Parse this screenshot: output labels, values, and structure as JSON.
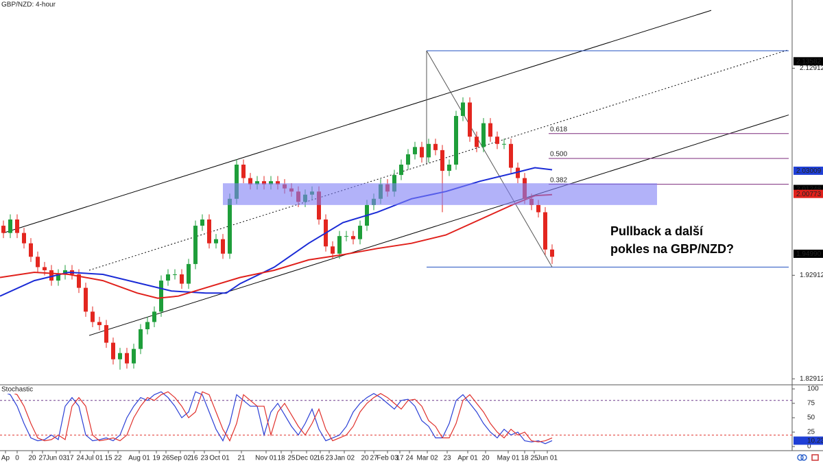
{
  "chart_data": [
    {
      "type": "candlestick",
      "title": "GBP/NZD: 4-hour",
      "x": [
        0.5,
        1.5,
        2.5,
        3.5,
        4.5,
        5.5,
        6.5,
        7.5,
        8.5,
        9.5,
        10.5,
        11.5,
        12.5,
        13.5,
        14.5,
        15.5,
        16.5,
        17.5,
        18.5,
        19.5,
        20.5,
        21.5,
        22.5,
        23.5,
        24.5,
        25.5,
        26.5,
        27.5,
        28.5,
        29.5,
        30.5,
        31.5,
        32.5,
        33.5,
        34.5,
        35.5,
        36.5,
        37.5,
        38.5,
        39.5,
        40.5,
        41.5,
        42.5,
        43.5,
        44.5,
        45.5,
        46.5,
        47.5,
        48.5,
        49.5,
        50.5,
        51.5,
        52.5,
        53.5,
        54.5,
        55.5,
        56.5,
        57.5,
        58.5,
        59.5,
        60.5,
        61.5,
        62.5,
        63.5,
        64.5,
        65.5,
        66.5,
        67.5,
        68.5,
        69.5,
        70.5,
        71.5,
        72.5,
        73.5,
        74.5,
        75.5,
        76.5,
        77.5,
        78.5,
        79.5,
        80.5
      ],
      "open": [
        1.977,
        1.97,
        1.983,
        1.97,
        1.96,
        1.947,
        1.937,
        1.934,
        1.924,
        1.93,
        1.934,
        1.93,
        1.917,
        1.894,
        1.884,
        1.881,
        1.864,
        1.848,
        1.854,
        1.844,
        1.858,
        1.877,
        1.884,
        1.894,
        1.924,
        1.93,
        1.93,
        1.921,
        1.94,
        1.977,
        1.983,
        1.96,
        1.964,
        1.95,
        2.003,
        2.036,
        2.023,
        2.017,
        2.02,
        2.017,
        2.02,
        2.017,
        2.013,
        2.01,
        2.0,
        2.007,
        2.01,
        1.983,
        1.957,
        1.95,
        1.967,
        1.967,
        1.964,
        1.977,
        1.997,
        2.003,
        2.017,
        2.01,
        2.026,
        2.036,
        2.046,
        2.053,
        2.043,
        2.056,
        2.05,
        2.03,
        2.036,
        2.083,
        2.096,
        2.063,
        2.053,
        2.076,
        2.063,
        2.056,
        2.056,
        2.033,
        2.023,
        2.003,
        1.997,
        1.99,
        1.954
      ],
      "high": [
        1.982,
        1.988,
        1.988,
        1.975,
        1.965,
        1.952,
        1.942,
        1.939,
        1.935,
        1.939,
        1.939,
        1.935,
        1.922,
        1.899,
        1.889,
        1.886,
        1.869,
        1.859,
        1.859,
        1.863,
        1.882,
        1.889,
        1.899,
        1.929,
        1.935,
        1.935,
        1.935,
        1.945,
        1.982,
        1.988,
        1.988,
        1.969,
        1.969,
        2.008,
        2.041,
        2.041,
        2.028,
        2.025,
        2.025,
        2.025,
        2.025,
        2.022,
        2.018,
        2.015,
        2.012,
        2.015,
        2.015,
        1.988,
        1.962,
        1.972,
        1.972,
        1.972,
        1.982,
        2.002,
        2.008,
        2.022,
        2.022,
        2.031,
        2.041,
        2.051,
        2.058,
        2.058,
        2.061,
        2.061,
        2.055,
        2.041,
        2.088,
        2.101,
        2.101,
        2.068,
        2.081,
        2.081,
        2.068,
        2.061,
        2.061,
        2.038,
        2.028,
        2.008,
        2.002,
        1.995,
        1.959
      ],
      "low": [
        1.965,
        1.965,
        1.965,
        1.955,
        1.942,
        1.932,
        1.929,
        1.919,
        1.919,
        1.925,
        1.925,
        1.912,
        1.889,
        1.879,
        1.876,
        1.859,
        1.843,
        1.838,
        1.839,
        1.839,
        1.853,
        1.872,
        1.879,
        1.889,
        1.919,
        1.925,
        1.916,
        1.916,
        1.935,
        1.972,
        1.955,
        1.955,
        1.945,
        1.945,
        1.998,
        2.018,
        2.012,
        2.012,
        2.012,
        2.012,
        2.012,
        2.008,
        2.005,
        1.995,
        1.995,
        2.002,
        1.978,
        1.952,
        1.945,
        1.945,
        1.962,
        1.959,
        1.959,
        1.972,
        1.992,
        1.998,
        2.005,
        2.005,
        2.021,
        2.031,
        2.041,
        2.038,
        2.038,
        2.045,
        1.99,
        2.025,
        2.031,
        2.078,
        2.058,
        2.048,
        2.048,
        2.058,
        2.051,
        2.051,
        2.028,
        2.018,
        1.998,
        1.992,
        1.985,
        1.949,
        1.94
      ],
      "close": [
        1.97,
        1.983,
        1.97,
        1.96,
        1.947,
        1.937,
        1.934,
        1.924,
        1.93,
        1.934,
        1.93,
        1.917,
        1.894,
        1.884,
        1.881,
        1.864,
        1.848,
        1.854,
        1.844,
        1.858,
        1.877,
        1.884,
        1.894,
        1.924,
        1.93,
        1.93,
        1.921,
        1.94,
        1.977,
        1.983,
        1.96,
        1.964,
        1.95,
        2.003,
        2.036,
        2.023,
        2.017,
        2.02,
        2.017,
        2.02,
        2.017,
        2.013,
        2.01,
        2.0,
        2.007,
        2.01,
        1.983,
        1.957,
        1.95,
        1.967,
        1.967,
        1.964,
        1.977,
        1.997,
        2.003,
        2.017,
        2.01,
        2.026,
        2.036,
        2.046,
        2.053,
        2.043,
        2.056,
        2.05,
        2.03,
        2.036,
        2.083,
        2.096,
        2.063,
        2.053,
        2.076,
        2.063,
        2.056,
        2.056,
        2.033,
        2.023,
        2.003,
        1.997,
        1.99,
        1.954,
        1.947
      ],
      "up_color": "#1e9e3a",
      "down_color": "#e3261f",
      "overlays": [
        {
          "color": "#1a2bd6",
          "x": [
            0,
            5,
            10,
            15,
            20,
            25,
            30,
            33,
            35,
            40,
            45,
            50,
            55,
            60,
            65,
            70,
            75,
            78,
            80.5
          ],
          "values": [
            1.909,
            1.924,
            1.932,
            1.93,
            1.922,
            1.914,
            1.912,
            1.912,
            1.921,
            1.937,
            1.96,
            1.98,
            1.99,
            2.003,
            2.01,
            2.02,
            2.028,
            2.033,
            2.031
          ]
        },
        {
          "color": "#e0201b",
          "x": [
            0,
            5,
            10,
            15,
            20,
            23,
            26,
            30,
            35,
            40,
            45,
            50,
            55,
            60,
            65,
            70,
            75,
            78,
            80.5
          ],
          "values": [
            1.927,
            1.932,
            1.93,
            1.924,
            1.912,
            1.907,
            1.909,
            1.917,
            1.927,
            1.934,
            1.944,
            1.949,
            1.955,
            1.96,
            1.968,
            1.983,
            1.998,
            2.006,
            2.007
          ]
        }
      ],
      "trendlines": [
        {
          "x": [
            0.5,
            103.7
          ],
          "y": [
            1.97,
            2.185
          ],
          "color": "#000000",
          "dash": false
        },
        {
          "x": [
            13,
            115
          ],
          "y": [
            1.934,
            2.147
          ],
          "color": "#000000",
          "dash": true
        },
        {
          "x": [
            13,
            115
          ],
          "y": [
            1.871,
            2.084
          ],
          "color": "#000000",
          "dash": false
        },
        {
          "x": [
            62.2,
            115
          ],
          "y": [
            2.146,
            2.146
          ],
          "color": "#1f4fc0",
          "dash": false
        },
        {
          "x": [
            62.2,
            115
          ],
          "y": [
            1.937,
            1.937
          ],
          "color": "#1f4fc0",
          "dash": false
        },
        {
          "x": [
            62.2,
            80.5
          ],
          "y": [
            2.146,
            1.937
          ],
          "color": "#555555",
          "dash": false
        },
        {
          "x": [
            62.2,
            62.2
          ],
          "y": [
            2.146,
            2.036
          ],
          "color": "#555555",
          "dash": false
        }
      ],
      "zone": {
        "x": [
          32.5,
          95.8
        ],
        "y": [
          1.997,
          2.018
        ],
        "color": "#7f7ff5"
      },
      "fib": {
        "x": [
          80,
          115
        ],
        "color": "#7b2a7b",
        "levels": [
          {
            "ratio": 0.618,
            "price": 2.066
          },
          {
            "ratio": 0.5,
            "label": "0.500",
            "price": 2.042
          },
          {
            "ratio": 0.382,
            "price": 2.017
          }
        ]
      },
      "annotation": [
        "Pullback a další",
        "pokles na GBP/NZD?"
      ],
      "xlim": [
        0,
        115.5
      ],
      "ylim": [
        1.824,
        2.195
      ],
      "yticks": [
        1.82912,
        1.92912,
        2.12912
      ],
      "price_labels": [
        {
          "value": 2.13582,
          "color": "#000000"
        },
        {
          "value": 2.03009,
          "color": "#1f3fd6"
        },
        {
          "value": 2.01248,
          "color": "#000000"
        },
        {
          "value": 2.00773,
          "color": "#e0201b"
        },
        {
          "value": 1.9499,
          "label": "1.94990",
          "color": "#000000"
        }
      ]
    },
    {
      "type": "line",
      "title": "Stochastic",
      "x": [
        0.5,
        1.5,
        2.5,
        3.5,
        4.5,
        5.5,
        6.5,
        7.5,
        8.5,
        9.5,
        10.5,
        11.5,
        12.5,
        13.5,
        14.5,
        15.5,
        16.5,
        17.5,
        18.5,
        19.5,
        20.5,
        21.5,
        22.5,
        23.5,
        24.5,
        25.5,
        26.5,
        27.5,
        28.5,
        29.5,
        30.5,
        31.5,
        32.5,
        33.5,
        34.5,
        35.5,
        36.5,
        37.5,
        38.5,
        39.5,
        40.5,
        41.5,
        42.5,
        43.5,
        44.5,
        45.5,
        46.5,
        47.5,
        48.5,
        49.5,
        50.5,
        51.5,
        52.5,
        53.5,
        54.5,
        55.5,
        56.5,
        57.5,
        58.5,
        59.5,
        60.5,
        61.5,
        62.5,
        63.5,
        64.5,
        65.5,
        66.5,
        67.5,
        68.5,
        69.5,
        70.5,
        71.5,
        72.5,
        73.5,
        74.5,
        75.5,
        76.5,
        77.5,
        78.5,
        79.5,
        80.5
      ],
      "series": [
        {
          "color": "#2a3fd6",
          "values": [
            95,
            90,
            70,
            40,
            15,
            10,
            12,
            20,
            12,
            70,
            85,
            70,
            20,
            10,
            12,
            15,
            10,
            20,
            50,
            70,
            85,
            80,
            90,
            95,
            85,
            70,
            50,
            60,
            95,
            90,
            60,
            30,
            10,
            40,
            90,
            80,
            70,
            70,
            20,
            60,
            75,
            55,
            35,
            20,
            40,
            65,
            30,
            10,
            15,
            20,
            35,
            60,
            75,
            85,
            92,
            85,
            75,
            65,
            80,
            82,
            70,
            45,
            35,
            15,
            15,
            40,
            80,
            90,
            75,
            60,
            40,
            25,
            15,
            30,
            20,
            25,
            10,
            8,
            10,
            5,
            10.23
          ]
        },
        {
          "color": "#e0302b",
          "values": [
            92,
            95,
            90,
            70,
            40,
            15,
            10,
            12,
            20,
            12,
            70,
            85,
            70,
            20,
            10,
            12,
            15,
            10,
            20,
            50,
            70,
            85,
            80,
            90,
            95,
            85,
            70,
            50,
            60,
            95,
            90,
            60,
            30,
            10,
            40,
            90,
            80,
            70,
            70,
            20,
            60,
            75,
            55,
            35,
            20,
            40,
            65,
            30,
            10,
            15,
            20,
            35,
            60,
            75,
            85,
            92,
            85,
            75,
            65,
            80,
            82,
            70,
            45,
            35,
            15,
            15,
            40,
            80,
            90,
            75,
            60,
            40,
            25,
            15,
            30,
            20,
            25,
            10,
            8,
            10,
            15
          ]
        }
      ],
      "ylim": [
        0,
        100
      ],
      "yticks": [
        0,
        25,
        50,
        75,
        100
      ],
      "levels": [
        {
          "value": 80,
          "color": "#6b3a8a"
        },
        {
          "value": 20,
          "color": "#e0302b"
        }
      ],
      "current": {
        "value": 10.23,
        "color": "#1f3fd6"
      },
      "xlim": [
        0,
        115.5
      ],
      "xticks": [
        {
          "value": 0.8,
          "label": "Ap"
        },
        {
          "value": 2.5,
          "label": "0"
        },
        {
          "value": 4.7,
          "label": "20"
        },
        {
          "value": 6.2,
          "label": "27"
        },
        {
          "value": 8.2,
          "label": "Jun 03"
        },
        {
          "value": 10.2,
          "label": "17"
        },
        {
          "value": 11.7,
          "label": "24"
        },
        {
          "value": 13.7,
          "label": "Jul 01"
        },
        {
          "value": 15.8,
          "label": "15"
        },
        {
          "value": 17.2,
          "label": "22"
        },
        {
          "value": 20.3,
          "label": "Aug 01"
        },
        {
          "value": 22.8,
          "label": "19"
        },
        {
          "value": 24.2,
          "label": "26"
        },
        {
          "value": 26.3,
          "label": "Sep 02"
        },
        {
          "value": 28.3,
          "label": "16"
        },
        {
          "value": 29.8,
          "label": "23"
        },
        {
          "value": 32.0,
          "label": "Oct 01"
        },
        {
          "value": 35.2,
          "label": "21"
        },
        {
          "value": 38.8,
          "label": "Nov 01"
        },
        {
          "value": 41.0,
          "label": "18"
        },
        {
          "value": 42.5,
          "label": "25"
        },
        {
          "value": 44.7,
          "label": "Dec 02"
        },
        {
          "value": 46.7,
          "label": "16"
        },
        {
          "value": 48.0,
          "label": "23"
        },
        {
          "value": 50.2,
          "label": "Jan 02"
        },
        {
          "value": 53.2,
          "label": "20"
        },
        {
          "value": 54.5,
          "label": "27"
        },
        {
          "value": 56.5,
          "label": "Feb 03"
        },
        {
          "value": 58.3,
          "label": "17"
        },
        {
          "value": 59.7,
          "label": "24"
        },
        {
          "value": 62.3,
          "label": "Mar 02"
        },
        {
          "value": 65.2,
          "label": "23"
        },
        {
          "value": 68.2,
          "label": "Apr 01"
        },
        {
          "value": 70.8,
          "label": "20"
        },
        {
          "value": 74.1,
          "label": "May 01"
        },
        {
          "value": 76.5,
          "label": "18"
        },
        {
          "value": 77.9,
          "label": "25"
        },
        {
          "value": 79.8,
          "label": "Jun 01"
        }
      ]
    }
  ]
}
